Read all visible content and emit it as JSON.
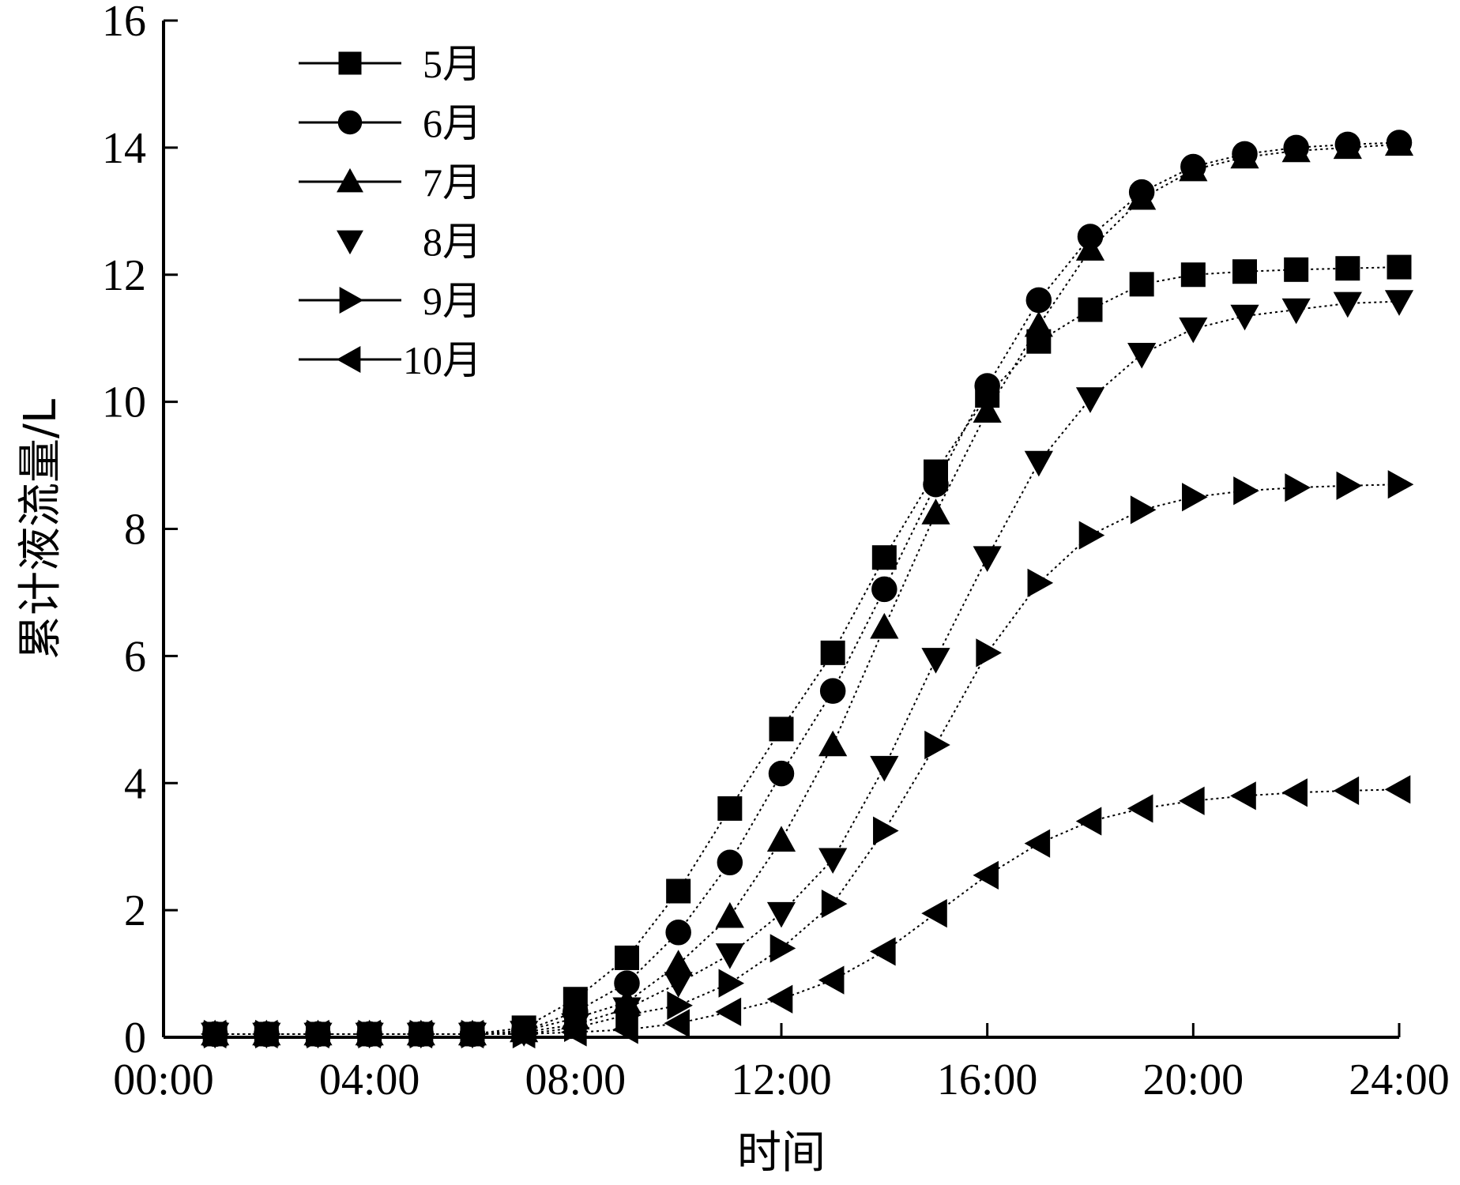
{
  "chart_data": {
    "type": "line",
    "xlabel": "时间",
    "ylabel": "累计液流量/L",
    "x_ticks": [
      "00:00",
      "04:00",
      "08:00",
      "12:00",
      "16:00",
      "20:00",
      "24:00"
    ],
    "xlim": [
      0,
      24
    ],
    "ylim": [
      0,
      16
    ],
    "y_ticks": [
      "0",
      "2",
      "4",
      "6",
      "8",
      "10",
      "12",
      "14",
      "16"
    ],
    "legend_position": "top-left",
    "x": [
      1,
      2,
      3,
      4,
      5,
      6,
      7,
      8,
      9,
      10,
      11,
      12,
      13,
      14,
      15,
      16,
      17,
      18,
      19,
      20,
      21,
      22,
      23,
      24
    ],
    "series": [
      {
        "name": "5月",
        "marker": "square",
        "line": "solid",
        "values": [
          0.05,
          0.05,
          0.05,
          0.05,
          0.05,
          0.05,
          0.15,
          0.6,
          1.25,
          2.3,
          3.6,
          4.85,
          6.05,
          7.55,
          8.9,
          10.1,
          10.95,
          11.45,
          11.85,
          12.0,
          12.05,
          12.08,
          12.1,
          12.12
        ]
      },
      {
        "name": "6月",
        "marker": "circle",
        "line": "solid",
        "values": [
          0.05,
          0.05,
          0.05,
          0.05,
          0.05,
          0.05,
          0.1,
          0.4,
          0.85,
          1.65,
          2.75,
          4.15,
          5.45,
          7.05,
          8.7,
          10.25,
          11.6,
          12.6,
          13.3,
          13.7,
          13.9,
          14.0,
          14.05,
          14.08
        ]
      },
      {
        "name": "7月",
        "marker": "triangle-up",
        "line": "solid",
        "values": [
          0.05,
          0.05,
          0.05,
          0.05,
          0.05,
          0.05,
          0.1,
          0.3,
          0.55,
          1.15,
          1.9,
          3.1,
          4.6,
          6.45,
          8.25,
          9.85,
          11.2,
          12.4,
          13.2,
          13.65,
          13.85,
          13.95,
          14.0,
          14.05
        ]
      },
      {
        "name": "8月",
        "marker": "triangle-down",
        "line": "none",
        "values": [
          0.05,
          0.05,
          0.05,
          0.05,
          0.05,
          0.05,
          0.08,
          0.2,
          0.45,
          0.85,
          1.3,
          1.95,
          2.8,
          4.25,
          5.95,
          7.55,
          9.05,
          10.05,
          10.75,
          11.15,
          11.35,
          11.45,
          11.55,
          11.58
        ]
      },
      {
        "name": "9月",
        "marker": "triangle-right",
        "line": "solid",
        "values": [
          0.05,
          0.05,
          0.05,
          0.05,
          0.05,
          0.05,
          0.05,
          0.15,
          0.35,
          0.5,
          0.85,
          1.4,
          2.1,
          3.25,
          4.6,
          6.05,
          7.15,
          7.9,
          8.3,
          8.5,
          8.6,
          8.65,
          8.68,
          8.7
        ]
      },
      {
        "name": "10月",
        "marker": "triangle-left",
        "line": "solid",
        "values": [
          0.05,
          0.05,
          0.05,
          0.05,
          0.05,
          0.05,
          0.05,
          0.08,
          0.12,
          0.22,
          0.4,
          0.6,
          0.9,
          1.35,
          1.95,
          2.55,
          3.05,
          3.4,
          3.6,
          3.72,
          3.8,
          3.85,
          3.88,
          3.9
        ]
      }
    ]
  }
}
